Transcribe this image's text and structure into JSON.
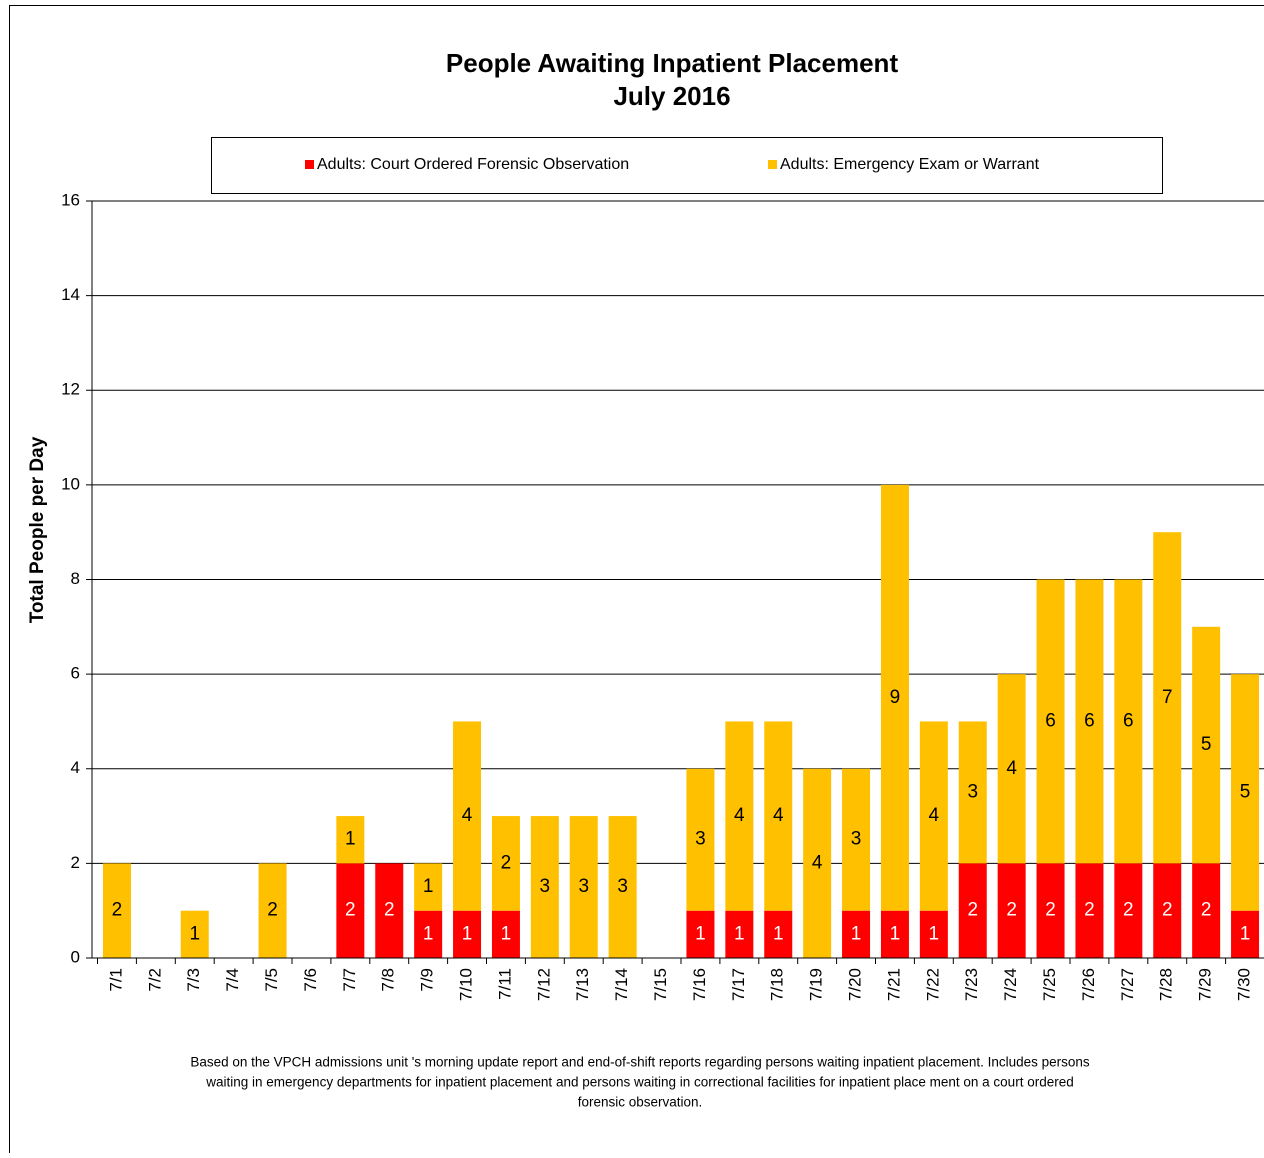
{
  "chart_data": {
    "type": "stacked_bar",
    "title": "People Awaiting Inpatient Placement",
    "subtitle": "July 2016",
    "y_label": "Total People per Day",
    "categories": [
      "7/1",
      "7/2",
      "7/3",
      "7/4",
      "7/5",
      "7/6",
      "7/7",
      "7/8",
      "7/9",
      "7/10",
      "7/11",
      "7/12",
      "7/13",
      "7/14",
      "7/15",
      "7/16",
      "7/17",
      "7/18",
      "7/19",
      "7/20",
      "7/21",
      "7/22",
      "7/23",
      "7/24",
      "7/25",
      "7/26",
      "7/27",
      "7/28",
      "7/29",
      "7/30"
    ],
    "series": [
      {
        "name": "Adults: Court Ordered Forensic Observation",
        "color": "#ff0000",
        "values": [
          null,
          null,
          null,
          null,
          null,
          null,
          2,
          2,
          1,
          1,
          1,
          null,
          null,
          null,
          null,
          1,
          1,
          1,
          null,
          1,
          1,
          1,
          2,
          2,
          2,
          2,
          2,
          2,
          2,
          1
        ]
      },
      {
        "name": "Adults: Emergency Exam or Warrant",
        "color": "#ffc000",
        "values": [
          2,
          null,
          1,
          null,
          2,
          null,
          1,
          null,
          1,
          4,
          2,
          3,
          3,
          3,
          null,
          3,
          4,
          4,
          4,
          3,
          9,
          4,
          3,
          4,
          6,
          6,
          6,
          7,
          5,
          5
        ]
      }
    ],
    "ylim": [
      0,
      16
    ],
    "yticks": [
      0,
      2,
      4,
      6,
      8,
      10,
      12,
      14,
      16
    ],
    "grid": true,
    "legend": "top",
    "note": [
      "Based on the VPCH admissions unit 's morning update report and end-of-shift reports regarding persons waiting inpatient placement.  Includes persons",
      "waiting in emergency departments for inpatient placement  and persons waiting in correctional  facilities for inpatient place ment on a court ordered",
      "forensic observation."
    ]
  }
}
